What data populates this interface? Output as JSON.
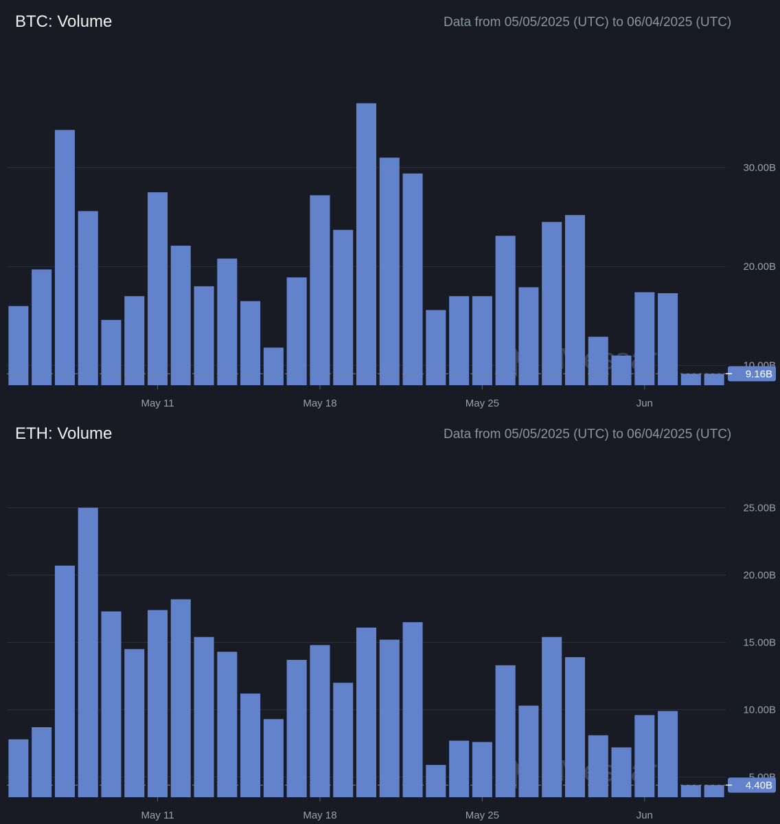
{
  "brand": {
    "watermark": "Messari",
    "bar_color": "#6283cc",
    "background": "#181b24",
    "marker_color": "#6283cc"
  },
  "chart_data": [
    {
      "type": "bar",
      "title": "BTC: Volume",
      "subtitle": "Data from 05/05/2025 (UTC) to 06/04/2025 (UTC)",
      "x": [
        "2025-05-05",
        "2025-05-06",
        "2025-05-07",
        "2025-05-08",
        "2025-05-09",
        "2025-05-10",
        "2025-05-11",
        "2025-05-12",
        "2025-05-13",
        "2025-05-14",
        "2025-05-15",
        "2025-05-16",
        "2025-05-17",
        "2025-05-18",
        "2025-05-19",
        "2025-05-20",
        "2025-05-21",
        "2025-05-22",
        "2025-05-23",
        "2025-05-24",
        "2025-05-25",
        "2025-05-26",
        "2025-05-27",
        "2025-05-28",
        "2025-05-29",
        "2025-05-30",
        "2025-05-31",
        "2025-06-01",
        "2025-06-02",
        "2025-06-03",
        "2025-06-04"
      ],
      "values": [
        16.0,
        19.7,
        33.8,
        25.6,
        14.6,
        17.0,
        27.5,
        22.1,
        18.0,
        20.8,
        16.5,
        11.8,
        18.9,
        27.2,
        23.7,
        36.5,
        31.0,
        29.4,
        15.6,
        17.0,
        17.0,
        23.1,
        17.9,
        24.5,
        25.2,
        12.9,
        11.0,
        17.4,
        17.3,
        9.16,
        9.16
      ],
      "x_ticks": [
        "May 11",
        "May 18",
        "May 25",
        "Jun"
      ],
      "x_tick_dates": [
        "2025-05-11",
        "2025-05-18",
        "2025-05-25",
        "2025-06-01"
      ],
      "y_ticks": [
        "10.00B",
        "20.00B",
        "30.00B"
      ],
      "y_tick_values": [
        10,
        20,
        30
      ],
      "ylim": [
        8.0,
        39.3
      ],
      "unit": "B",
      "last_value_label": "9.16B",
      "last_value": 9.16,
      "gridlines": true
    },
    {
      "type": "bar",
      "title": "ETH: Volume",
      "subtitle": "Data from 05/05/2025 (UTC) to 06/04/2025 (UTC)",
      "x": [
        "2025-05-05",
        "2025-05-06",
        "2025-05-07",
        "2025-05-08",
        "2025-05-09",
        "2025-05-10",
        "2025-05-11",
        "2025-05-12",
        "2025-05-13",
        "2025-05-14",
        "2025-05-15",
        "2025-05-16",
        "2025-05-17",
        "2025-05-18",
        "2025-05-19",
        "2025-05-20",
        "2025-05-21",
        "2025-05-22",
        "2025-05-23",
        "2025-05-24",
        "2025-05-25",
        "2025-05-26",
        "2025-05-27",
        "2025-05-28",
        "2025-05-29",
        "2025-05-30",
        "2025-05-31",
        "2025-06-01",
        "2025-06-02",
        "2025-06-03",
        "2025-06-04"
      ],
      "values": [
        7.8,
        8.7,
        20.7,
        25.0,
        17.3,
        14.5,
        17.4,
        18.2,
        15.4,
        14.3,
        11.2,
        9.3,
        13.7,
        14.8,
        12.0,
        16.1,
        15.2,
        16.5,
        5.9,
        7.7,
        7.6,
        13.3,
        10.3,
        15.4,
        13.9,
        8.1,
        7.2,
        9.6,
        9.9,
        4.4,
        4.4
      ],
      "x_ticks": [
        "May 11",
        "May 18",
        "May 25",
        "Jun"
      ],
      "x_tick_dates": [
        "2025-05-11",
        "2025-05-18",
        "2025-05-25",
        "2025-06-01"
      ],
      "y_ticks": [
        "5.00B",
        "10.00B",
        "15.00B",
        "20.00B",
        "25.00B"
      ],
      "y_tick_values": [
        5,
        10,
        15,
        20,
        25
      ],
      "ylim": [
        3.5,
        26.5
      ],
      "unit": "B",
      "last_value_label": "4.40B",
      "last_value": 4.4,
      "gridlines": true
    }
  ]
}
